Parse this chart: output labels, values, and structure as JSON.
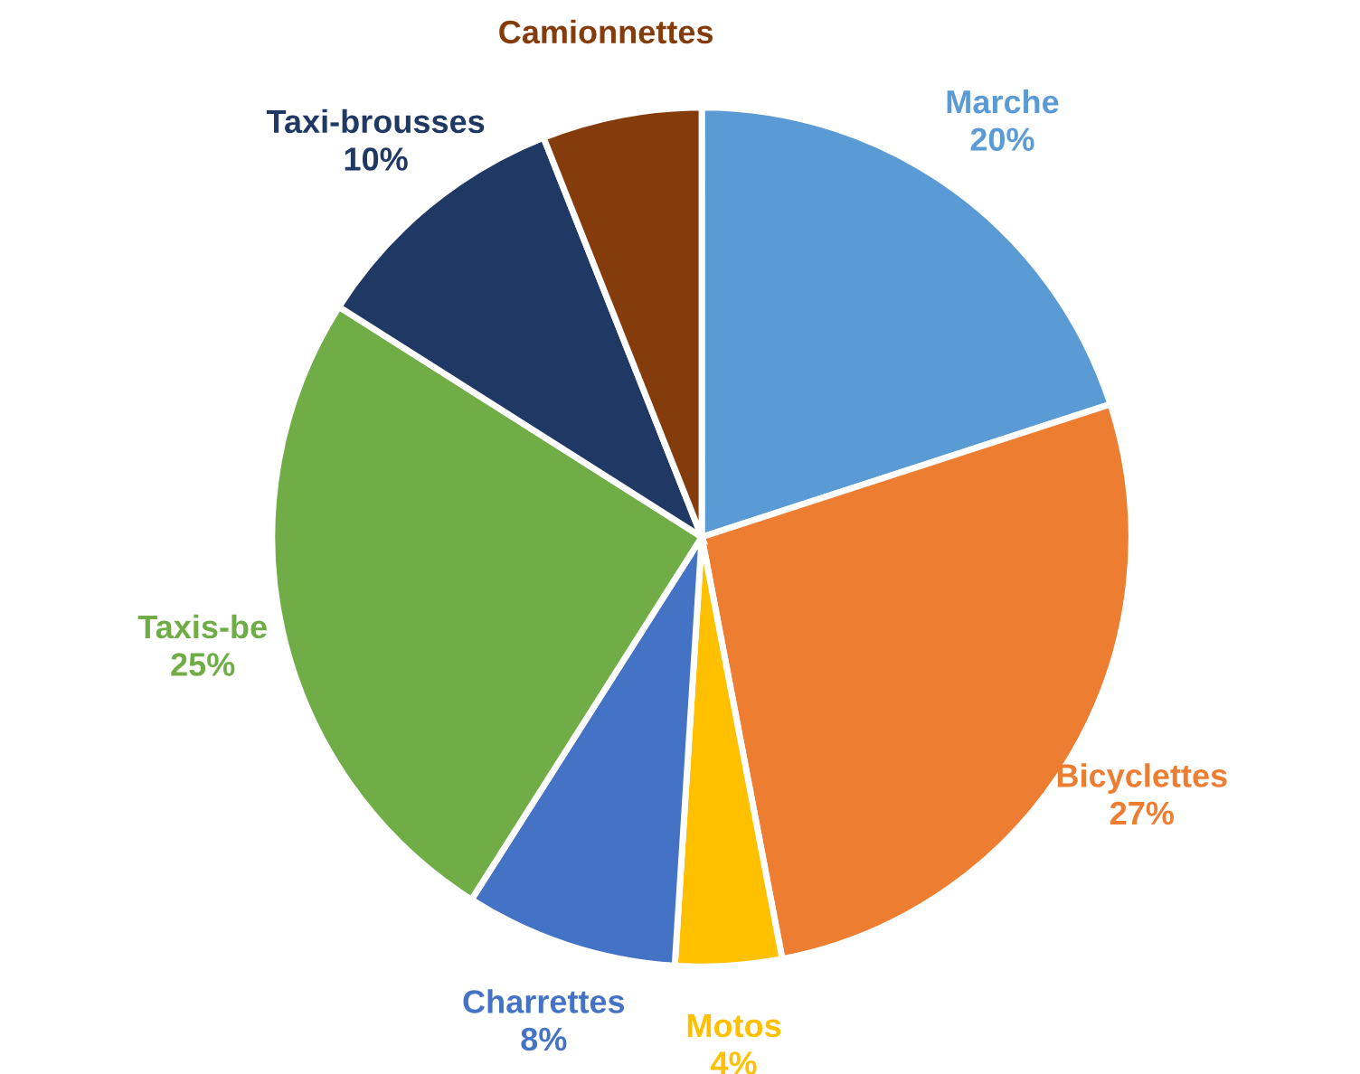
{
  "chart_data": {
    "type": "pie",
    "categories": [
      "Marche",
      "Bicyclettes",
      "Motos",
      "Charrettes",
      "Taxis-be",
      "Taxi-brousses",
      "Camionnettes"
    ],
    "values": [
      20,
      27,
      4,
      8,
      25,
      10,
      6
    ],
    "value_labels": [
      "20%",
      "27%",
      "4%",
      "8%",
      "25%",
      "10%",
      null
    ],
    "colors": [
      "#5b9bd5",
      "#ed7d31",
      "#ffc000",
      "#4472c4",
      "#70ad47",
      "#203864",
      "#843c0c"
    ],
    "legend": false
  }
}
